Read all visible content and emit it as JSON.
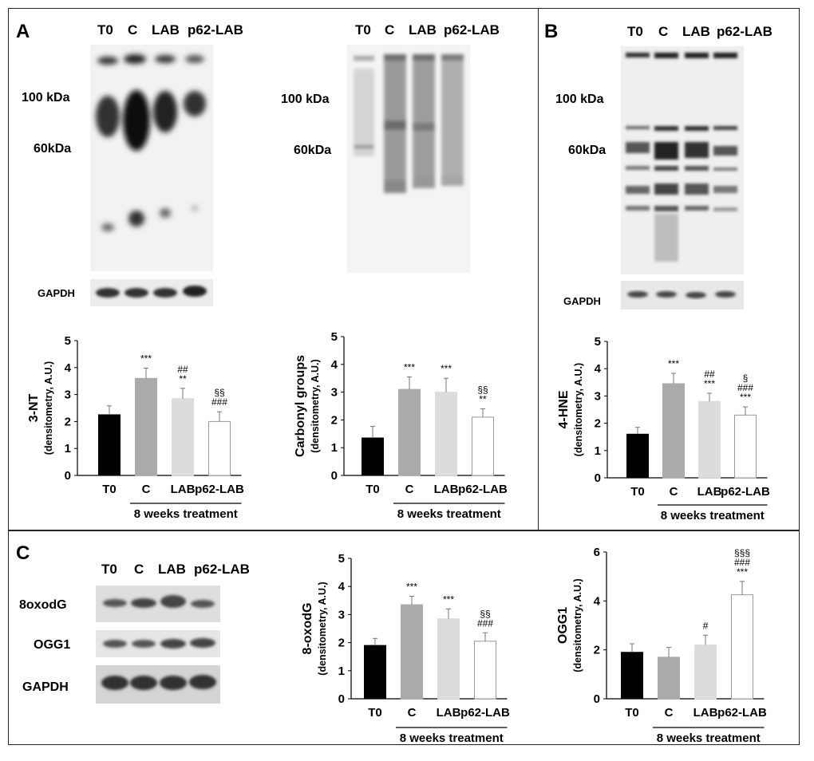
{
  "panels": {
    "A": "A",
    "B": "B",
    "C": "C"
  },
  "lanes": [
    "T0",
    "C",
    "LAB",
    "p62-LAB"
  ],
  "markers": {
    "kda100": "100 kDa",
    "kda60": "60kDa"
  },
  "blot_labels": {
    "gapdh_small": "GAPDH",
    "gapdh_c": "GAPDH",
    "oxodg": "8oxodG",
    "ogg1": "OGG1"
  },
  "chart_data": [
    {
      "type": "bar",
      "categories": [
        "T0",
        "C",
        "LAB",
        "p62-LAB"
      ],
      "values": [
        2.25,
        3.6,
        2.85,
        2.0
      ],
      "errors": [
        0.33,
        0.38,
        0.38,
        0.36
      ],
      "annotations": [
        "",
        "***",
        "##\n**",
        "§§\n###"
      ],
      "ylabel": "3-NT",
      "ylabel_sub": "(densitometry, A.U.)",
      "ylim": [
        0,
        5
      ],
      "yticks": [
        0,
        1,
        2,
        3,
        4,
        5
      ],
      "group_label": "8 weeks treatment",
      "colors": [
        "#000000",
        "#aaaaaa",
        "#dcdcdc",
        "#ffffff"
      ]
    },
    {
      "type": "bar",
      "categories": [
        "T0",
        "C",
        "LAB",
        "p62-LAB"
      ],
      "values": [
        1.35,
        3.1,
        3.0,
        2.1
      ],
      "errors": [
        0.42,
        0.45,
        0.5,
        0.3
      ],
      "annotations": [
        "",
        "***",
        "***",
        "§§\n**"
      ],
      "ylabel": "Carbonyl groups",
      "ylabel_sub": "(densitometry, A.U.)",
      "ylim": [
        0,
        5
      ],
      "yticks": [
        0,
        1,
        2,
        3,
        4,
        5
      ],
      "group_label": "8 weeks treatment",
      "colors": [
        "#000000",
        "#aaaaaa",
        "#dcdcdc",
        "#ffffff"
      ]
    },
    {
      "type": "bar",
      "categories": [
        "T0",
        "C",
        "LAB",
        "p62-LAB"
      ],
      "values": [
        1.6,
        3.45,
        2.8,
        2.3
      ],
      "errors": [
        0.25,
        0.38,
        0.3,
        0.3
      ],
      "annotations": [
        "",
        "***",
        "##\n***",
        "§\n###\n***"
      ],
      "ylabel": "4-HNE",
      "ylabel_sub": "(densitometry, A.U.)",
      "ylim": [
        0,
        5
      ],
      "yticks": [
        0,
        1,
        2,
        3,
        4,
        5
      ],
      "group_label": "8 weeks treatment",
      "colors": [
        "#000000",
        "#aaaaaa",
        "#dcdcdc",
        "#ffffff"
      ]
    },
    {
      "type": "bar",
      "categories": [
        "T0",
        "C",
        "LAB",
        "p62-LAB"
      ],
      "values": [
        1.9,
        3.35,
        2.85,
        2.05
      ],
      "errors": [
        0.25,
        0.3,
        0.35,
        0.3
      ],
      "annotations": [
        "",
        "***",
        "***",
        "§§\n###"
      ],
      "ylabel": "8-oxodG",
      "ylabel_sub": "(densitometry, A.U.)",
      "ylim": [
        0,
        5
      ],
      "yticks": [
        0,
        1,
        2,
        3,
        4,
        5
      ],
      "group_label": "8 weeks treatment",
      "colors": [
        "#000000",
        "#aaaaaa",
        "#dcdcdc",
        "#ffffff"
      ]
    },
    {
      "type": "bar",
      "categories": [
        "T0",
        "C",
        "LAB",
        "p62-LAB"
      ],
      "values": [
        1.9,
        1.7,
        2.2,
        4.25
      ],
      "errors": [
        0.35,
        0.4,
        0.4,
        0.55
      ],
      "annotations": [
        "",
        "",
        "#",
        "§§§\n###\n***"
      ],
      "ylabel": "OGG1",
      "ylabel_sub": "(densitometry, A.U.)",
      "ylim": [
        0,
        6
      ],
      "yticks": [
        0,
        2,
        4,
        6
      ],
      "group_label": "8 weeks treatment",
      "colors": [
        "#000000",
        "#aaaaaa",
        "#dcdcdc",
        "#ffffff"
      ]
    }
  ]
}
